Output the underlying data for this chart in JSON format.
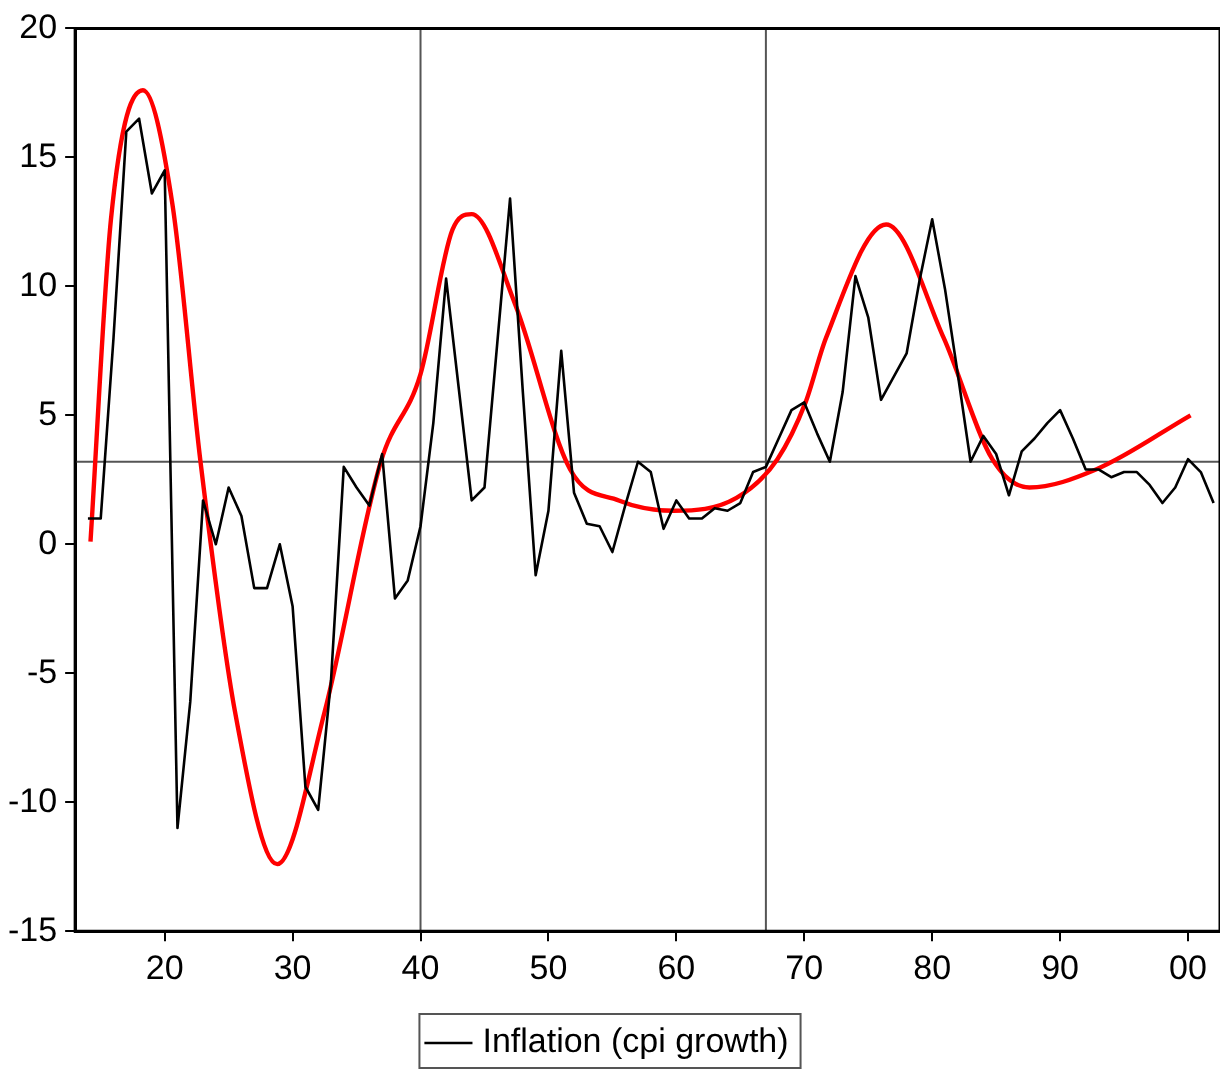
{
  "chart_data": {
    "type": "line",
    "x": [
      1914,
      1915,
      1916,
      1917,
      1918,
      1919,
      1920,
      1921,
      1922,
      1923,
      1924,
      1925,
      1926,
      1927,
      1928,
      1929,
      1930,
      1931,
      1932,
      1933,
      1934,
      1935,
      1936,
      1937,
      1938,
      1939,
      1940,
      1941,
      1942,
      1943,
      1944,
      1945,
      1946,
      1947,
      1948,
      1949,
      1950,
      1951,
      1952,
      1953,
      1954,
      1955,
      1956,
      1957,
      1958,
      1959,
      1960,
      1961,
      1962,
      1963,
      1964,
      1965,
      1966,
      1967,
      1968,
      1969,
      1970,
      1971,
      1972,
      1973,
      1974,
      1975,
      1976,
      1977,
      1978,
      1979,
      1980,
      1981,
      1982,
      1983,
      1984,
      1985,
      1986,
      1987,
      1988,
      1989,
      1990,
      1991,
      1992,
      1993,
      1994,
      1995,
      1996,
      1997,
      1998,
      1999,
      2000,
      2001,
      2002
    ],
    "series": [
      {
        "name": "Inflation (cpi growth)",
        "color": "#000000",
        "values": [
          1.0,
          1.0,
          8.0,
          16.0,
          16.5,
          13.6,
          14.5,
          -11.0,
          -6.1,
          1.7,
          0.0,
          2.2,
          1.1,
          -1.7,
          -1.7,
          0.0,
          -2.4,
          -9.4,
          -10.3,
          -5.3,
          3.0,
          2.2,
          1.5,
          3.5,
          -2.1,
          -1.4,
          0.7,
          4.7,
          10.3,
          6.0,
          1.7,
          2.2,
          7.8,
          13.4,
          5.9,
          -1.2,
          1.3,
          7.5,
          2.0,
          0.8,
          0.7,
          -0.3,
          1.5,
          3.2,
          2.8,
          0.6,
          1.7,
          1.0,
          1.0,
          1.4,
          1.3,
          1.6,
          2.8,
          3.0,
          4.1,
          5.2,
          5.5,
          4.3,
          3.2,
          5.9,
          10.4,
          8.8,
          5.6,
          6.5,
          7.4,
          10.2,
          12.6,
          9.9,
          6.6,
          3.2,
          4.2,
          3.5,
          1.9,
          3.6,
          4.1,
          4.7,
          5.2,
          4.1,
          2.9,
          2.9,
          2.6,
          2.8,
          2.8,
          2.3,
          1.6,
          2.2,
          3.3,
          2.8,
          1.6
        ]
      },
      {
        "type": "line",
        "color": "#ff0000",
        "x": [
          1914.2,
          1915.8,
          1918.3,
          1920.6,
          1922.8,
          1925.5,
          1928.8,
          1932.5,
          1936.9,
          1940,
          1942.5,
          1944,
          1947.4,
          1951.7,
          1955.5,
          1959.8,
          1964.7,
          1967.9,
          1970.1,
          1971.7,
          1976.4,
          1980.9,
          1984.7,
          1987.6,
          1992.8,
          2000.2
        ],
        "values": [
          0.1,
          12.6,
          17.6,
          13.2,
          3.2,
          -6.5,
          -12.4,
          -6.5,
          3.2,
          6.6,
          12.2,
          12.8,
          9.3,
          2.9,
          1.7,
          1.3,
          1.8,
          3.3,
          5.5,
          8.0,
          12.4,
          8.0,
          3.3,
          2.2,
          2.9,
          5.0
        ]
      }
    ],
    "xlim": [
      1913,
      2002.5
    ],
    "xticks": [
      {
        "value": 1920,
        "label": "20"
      },
      {
        "value": 1930,
        "label": "30"
      },
      {
        "value": 1940,
        "label": "40"
      },
      {
        "value": 1950,
        "label": "50"
      },
      {
        "value": 1960,
        "label": "60"
      },
      {
        "value": 1970,
        "label": "70"
      },
      {
        "value": 1980,
        "label": "80"
      },
      {
        "value": 1990,
        "label": "90"
      },
      {
        "value": 2000,
        "label": "00"
      }
    ],
    "ylim": [
      -15,
      20
    ],
    "yticks": [
      -15,
      -10,
      -5,
      0,
      5,
      10,
      15,
      20
    ],
    "ref_lines": [
      {
        "axis": "x",
        "value": 1940,
        "color": "#555555"
      },
      {
        "axis": "x",
        "value": 1967,
        "color": "#555555"
      },
      {
        "axis": "y",
        "value": 3.2,
        "color": "#555555"
      }
    ],
    "legend": "bottom",
    "grid": false,
    "marker": "none",
    "line_style": "solid"
  }
}
